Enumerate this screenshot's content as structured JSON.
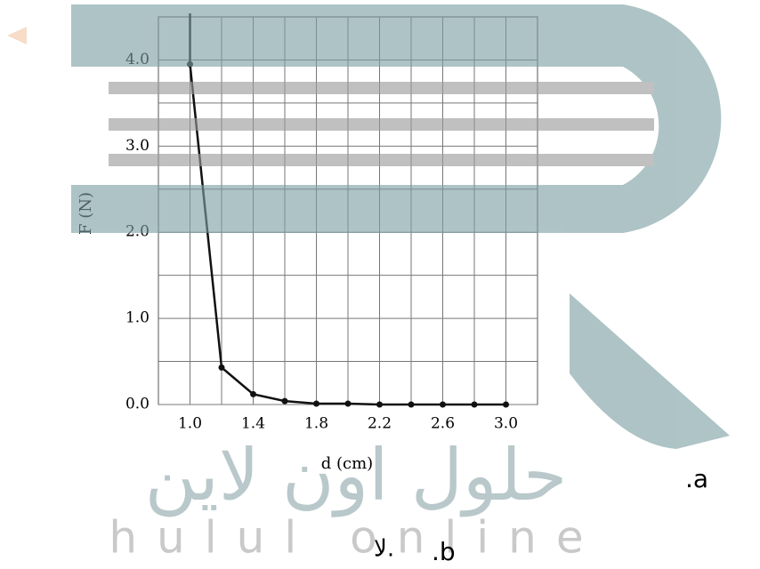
{
  "chart_data": {
    "type": "line",
    "x_label": "d (cm)",
    "y_label": "F (N)",
    "x": [
      1.0,
      1.2,
      1.4,
      1.6,
      1.8,
      2.0,
      2.2,
      2.4,
      2.6,
      2.8,
      3.0
    ],
    "series": [
      {
        "name": null,
        "color": "#111111",
        "values": [
          3.95,
          0.43,
          0.12,
          0.04,
          0.01,
          0.01,
          0,
          0,
          0,
          0,
          0
        ]
      }
    ],
    "xlim": [
      0.8,
      3.2
    ],
    "ylim": [
      0,
      4.5
    ],
    "xticks": [
      {
        "value": 1.0,
        "label": "1.0"
      },
      {
        "value": 1.2,
        "label": null
      },
      {
        "value": 1.4,
        "label": "1.4"
      },
      {
        "value": 1.6,
        "label": null
      },
      {
        "value": 1.8,
        "label": "1.8"
      },
      {
        "value": 2.0,
        "label": null
      },
      {
        "value": 2.2,
        "label": "2.2"
      },
      {
        "value": 2.4,
        "label": null
      },
      {
        "value": 2.6,
        "label": "2.6"
      },
      {
        "value": 2.8,
        "label": null
      },
      {
        "value": 3.0,
        "label": "3.0"
      }
    ],
    "yticks": [
      {
        "value": 0,
        "label": "0.0"
      },
      {
        "value": 0.5,
        "label": null
      },
      {
        "value": 1,
        "label": "1.0"
      },
      {
        "value": 1.5,
        "label": null
      },
      {
        "value": 2,
        "label": "2.0"
      },
      {
        "value": 2.5,
        "label": null
      },
      {
        "value": 3,
        "label": "3.0"
      },
      {
        "value": 3.5,
        "label": null
      },
      {
        "value": 4,
        "label": "4.0"
      }
    ],
    "grid": true
  },
  "watermark": {
    "arabic": "حلول اون لاين",
    "latin": "hulul online"
  },
  "options": {
    "a": ".a",
    "b": ".b",
    "b_text": "لا."
  }
}
